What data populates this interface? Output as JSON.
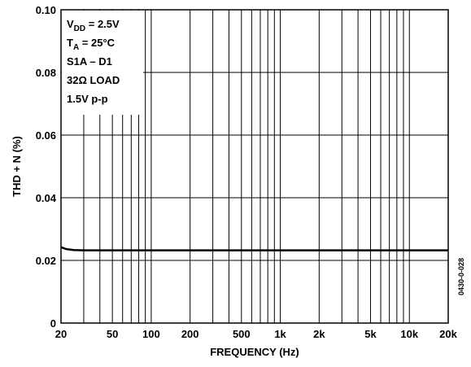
{
  "chart_data": {
    "type": "line",
    "xlabel": "FREQUENCY (Hz)",
    "ylabel": "THD + N (%)",
    "x_scale": "log",
    "xlim": [
      20,
      20000
    ],
    "ylim": [
      0,
      0.1
    ],
    "grid": true,
    "x_ticks": [
      {
        "value": 20,
        "label": "20"
      },
      {
        "value": 50,
        "label": "50"
      },
      {
        "value": 100,
        "label": "100"
      },
      {
        "value": 200,
        "label": "200"
      },
      {
        "value": 500,
        "label": "500"
      },
      {
        "value": 1000,
        "label": "1k"
      },
      {
        "value": 2000,
        "label": "2k"
      },
      {
        "value": 5000,
        "label": "5k"
      },
      {
        "value": 10000,
        "label": "10k"
      },
      {
        "value": 20000,
        "label": "20k"
      }
    ],
    "y_ticks": [
      {
        "value": 0,
        "label": "0"
      },
      {
        "value": 0.02,
        "label": "0.02"
      },
      {
        "value": 0.04,
        "label": "0.04"
      },
      {
        "value": 0.06,
        "label": "0.06"
      },
      {
        "value": 0.08,
        "label": "0.08"
      },
      {
        "value": 0.1,
        "label": "0.10"
      }
    ],
    "series": [
      {
        "x": [
          20,
          22,
          25,
          30,
          50,
          100,
          200,
          500,
          1000,
          2000,
          5000,
          10000,
          20000
        ],
        "y": [
          0.0242,
          0.0236,
          0.0233,
          0.0232,
          0.0232,
          0.0232,
          0.0232,
          0.0232,
          0.0232,
          0.0232,
          0.0232,
          0.0232,
          0.0232
        ]
      }
    ],
    "legend": {
      "placement": "top-left",
      "lines": [
        {
          "main": "V",
          "sub": "DD",
          "rest": " = 2.5V"
        },
        {
          "main": "T",
          "sub": "A",
          "rest": " = 25°C"
        },
        {
          "main": "S1A – D1",
          "sub": "",
          "rest": ""
        },
        {
          "main": "32Ω LOAD",
          "sub": "",
          "rest": ""
        },
        {
          "main": "1.5V p-p",
          "sub": "",
          "rest": ""
        }
      ]
    },
    "figure_code": "0430-0-028"
  }
}
